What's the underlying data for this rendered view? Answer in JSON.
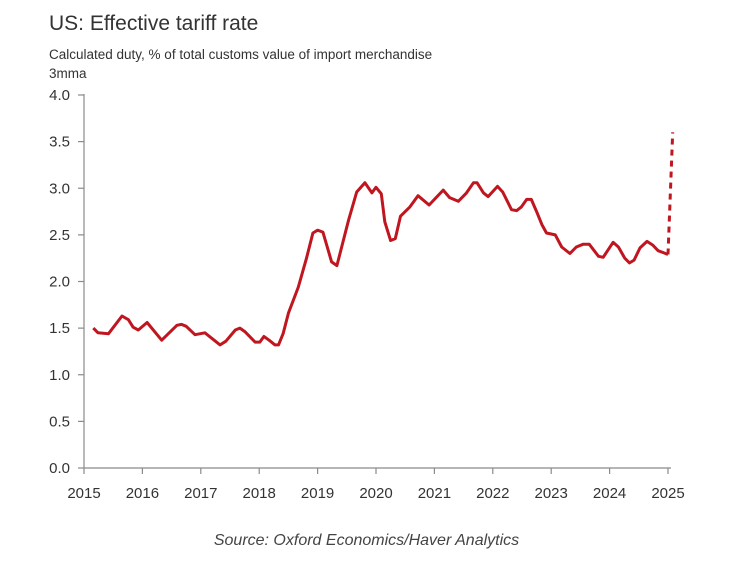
{
  "chart_data": {
    "type": "line",
    "title": "US: Effective tariff rate",
    "subtitle": "Calculated duty, % of total customs value of import merchandise",
    "unit_label": "3mma",
    "source": "Source: Oxford Economics/Haver Analytics",
    "xlim": [
      2015,
      2025
    ],
    "ylim": [
      0,
      4.0
    ],
    "x_ticks": [
      "2015",
      "2016",
      "2017",
      "2018",
      "2019",
      "2020",
      "2021",
      "2022",
      "2023",
      "2024",
      "2025"
    ],
    "y_ticks": [
      "0.0",
      "0.5",
      "1.0",
      "1.5",
      "2.0",
      "2.5",
      "3.0",
      "3.5",
      "4.0"
    ],
    "grid": false,
    "line_color": "#c0161f",
    "series": [
      {
        "style": "solid",
        "x": [
          2015.16,
          2015.24,
          2015.42,
          2015.65,
          2015.76,
          2015.84,
          2015.93,
          2016.08,
          2016.33,
          2016.59,
          2016.67,
          2016.75,
          2016.9,
          2017.07,
          2017.33,
          2017.43,
          2017.59,
          2017.67,
          2017.76,
          2017.93,
          2018.01,
          2018.08,
          2018.17,
          2018.27,
          2018.33,
          2018.41,
          2018.5,
          2018.67,
          2018.81,
          2018.92,
          2019.0,
          2019.09,
          2019.24,
          2019.33,
          2019.53,
          2019.67,
          2019.81,
          2019.93,
          2020.0,
          2020.09,
          2020.15,
          2020.25,
          2020.33,
          2020.42,
          2020.58,
          2020.72,
          2020.91,
          2021.15,
          2021.26,
          2021.41,
          2021.55,
          2021.67,
          2021.73,
          2021.84,
          2021.92,
          2022.08,
          2022.17,
          2022.32,
          2022.41,
          2022.49,
          2022.58,
          2022.66,
          2022.75,
          2022.84,
          2022.92,
          2023.07,
          2023.18,
          2023.32,
          2023.43,
          2023.55,
          2023.65,
          2023.81,
          2023.89,
          2024.06,
          2024.15,
          2024.26,
          2024.34,
          2024.42,
          2024.52,
          2024.64,
          2024.74,
          2024.83,
          2024.92,
          2025.0
        ],
        "y": [
          1.5,
          1.45,
          1.44,
          1.63,
          1.59,
          1.51,
          1.48,
          1.56,
          1.37,
          1.53,
          1.54,
          1.52,
          1.43,
          1.45,
          1.32,
          1.36,
          1.48,
          1.5,
          1.46,
          1.35,
          1.35,
          1.41,
          1.37,
          1.32,
          1.32,
          1.44,
          1.66,
          1.94,
          2.25,
          2.52,
          2.55,
          2.53,
          2.21,
          2.17,
          2.66,
          2.96,
          3.06,
          2.95,
          3.01,
          2.94,
          2.64,
          2.44,
          2.46,
          2.7,
          2.8,
          2.92,
          2.82,
          2.98,
          2.9,
          2.86,
          2.95,
          3.06,
          3.06,
          2.95,
          2.91,
          3.02,
          2.96,
          2.77,
          2.76,
          2.8,
          2.88,
          2.88,
          2.75,
          2.61,
          2.52,
          2.5,
          2.37,
          2.3,
          2.37,
          2.4,
          2.4,
          2.27,
          2.26,
          2.42,
          2.37,
          2.25,
          2.2,
          2.23,
          2.36,
          2.43,
          2.39,
          2.33,
          2.31,
          2.29
        ]
      },
      {
        "style": "dashed",
        "x": [
          2025.0,
          2025.08
        ],
        "y": [
          2.29,
          3.6
        ]
      }
    ]
  }
}
